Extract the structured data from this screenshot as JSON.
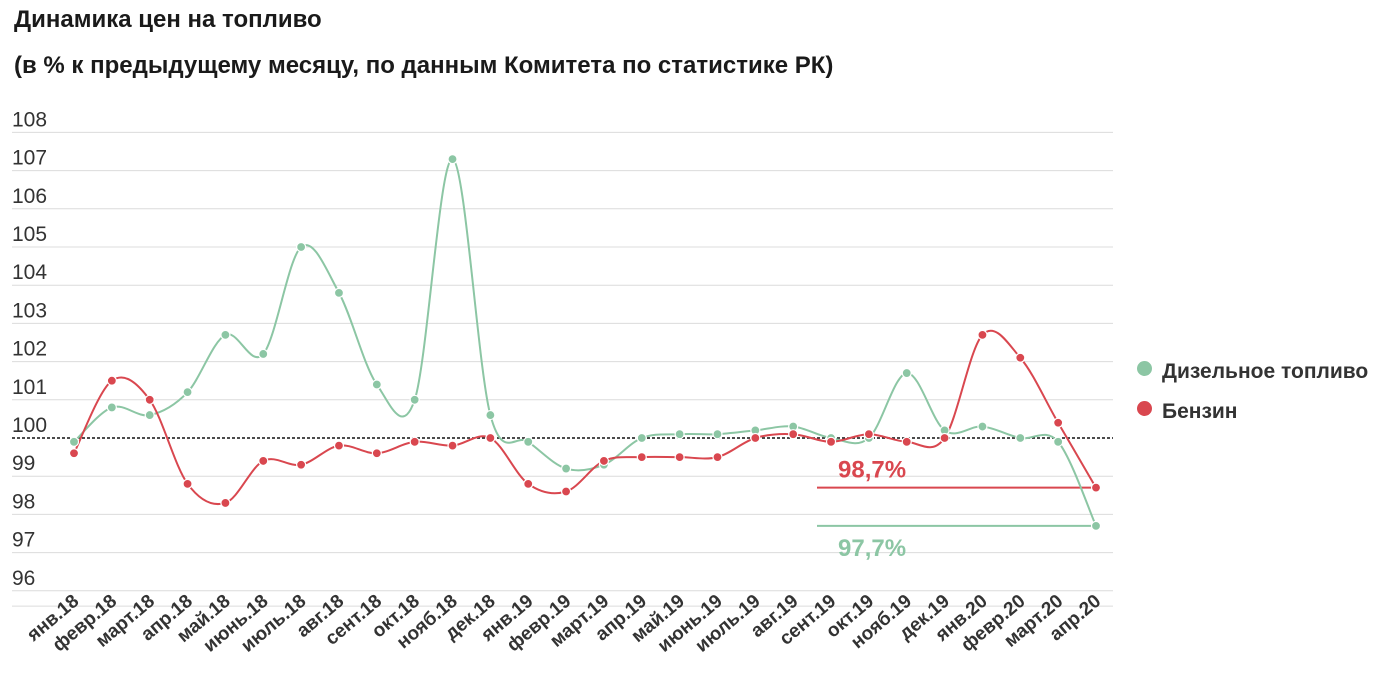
{
  "title": "Динамика цен на топливо",
  "subtitle": "(в % к предыдущему месяцу, по данным Комитета по статистике РК)",
  "colors": {
    "diesel": "#8cc6a4",
    "petrol": "#d9474f",
    "grid": "#dcdcdc",
    "baseline": "#111111"
  },
  "chart_data": {
    "type": "line",
    "title": "Динамика цен на топливо",
    "subtitle": "(в % к предыдущему месяцу, по данным Комитета по статистике РК)",
    "categories": [
      "янв.18",
      "февр.18",
      "март.18",
      "апр.18",
      "май.18",
      "июнь.18",
      "июль.18",
      "авг.18",
      "сент.18",
      "окт.18",
      "нояб.18",
      "дек.18",
      "янв.19",
      "февр.19",
      "март.19",
      "апр.19",
      "май.19",
      "июнь.19",
      "июль.19",
      "авг.19",
      "сент.19",
      "окт.19",
      "нояб.19",
      "дек.19",
      "янв.20",
      "февр.20",
      "март.20",
      "апр.20"
    ],
    "yticks": [
      96,
      97,
      98,
      99,
      100,
      101,
      102,
      103,
      104,
      105,
      106,
      107,
      108
    ],
    "ylim": [
      95.6,
      108.4
    ],
    "baseline": 100,
    "grid": true,
    "legend_position": "right",
    "series": [
      {
        "name": "Дизельное топливо",
        "color": "#8cc6a4",
        "values": [
          99.9,
          100.8,
          100.6,
          101.2,
          102.7,
          102.2,
          105.0,
          103.8,
          101.4,
          101.0,
          107.3,
          100.6,
          99.9,
          99.2,
          99.3,
          100.0,
          100.1,
          100.1,
          100.2,
          100.3,
          100.0,
          100.0,
          101.7,
          100.2,
          100.3,
          100.0,
          99.9,
          97.7
        ]
      },
      {
        "name": "Бензин",
        "color": "#d9474f",
        "values": [
          99.6,
          101.5,
          101.0,
          98.8,
          98.3,
          99.4,
          99.3,
          99.8,
          99.6,
          99.9,
          99.8,
          100.0,
          98.8,
          98.6,
          99.4,
          99.5,
          99.5,
          99.5,
          100.0,
          100.1,
          99.9,
          100.1,
          99.9,
          100.0,
          102.7,
          102.1,
          100.4,
          98.7
        ]
      }
    ],
    "annotations": [
      {
        "text": "98,7%",
        "series": "Бензин",
        "value": 98.7,
        "color": "#d9474f"
      },
      {
        "text": "97,7%",
        "series": "Дизельное топливо",
        "value": 97.7,
        "color": "#8cc6a4"
      }
    ]
  }
}
